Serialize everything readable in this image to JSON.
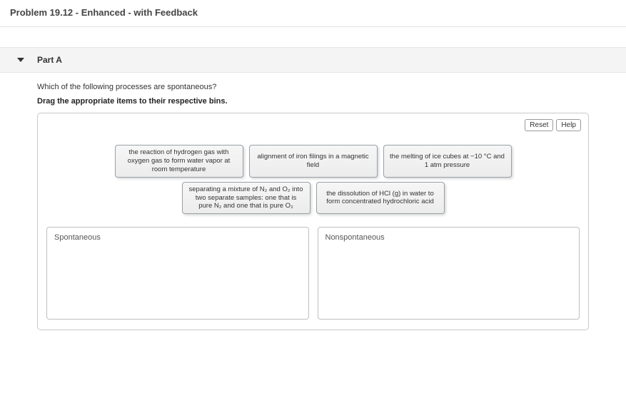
{
  "header": {
    "title": "Problem 19.12 - Enhanced - with Feedback"
  },
  "part": {
    "label": "Part A"
  },
  "question": {
    "prompt": "Which of the following processes are spontaneous?",
    "instruction": "Drag the appropriate items to their respective bins."
  },
  "actions": {
    "reset": "Reset",
    "help": "Help"
  },
  "items": {
    "row1": [
      "the reaction of hydrogen gas with oxygen gas to form water vapor at room temperature",
      "alignment of iron filings in a magnetic field",
      "the melting of ice cubes at −10 °C and 1  atm pressure"
    ],
    "row2": [
      "separating a mixture of N₂ and O₂ into two separate samples: one that is pure N₂ and one that is pure O₂",
      "the dissolution of HCl (g) in water to form concentrated hydrochloric acid"
    ]
  },
  "bins": {
    "left": "Spontaneous",
    "right": "Nonspontaneous"
  }
}
